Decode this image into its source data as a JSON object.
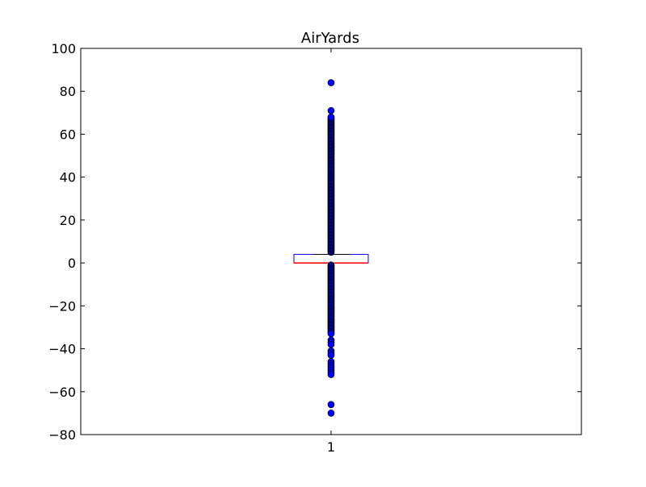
{
  "chart_data": {
    "type": "box",
    "title": "AirYards",
    "xlabel": "",
    "ylabel": "",
    "categories": [
      "1"
    ],
    "ylim": [
      -80,
      100
    ],
    "yticks": [
      -80,
      -60,
      -40,
      -20,
      0,
      20,
      40,
      60,
      80,
      100
    ],
    "ytick_labels": [
      "−80",
      "−60",
      "−40",
      "−20",
      "0",
      "20",
      "40",
      "60",
      "80",
      "100"
    ],
    "xtick_labels": [
      "1"
    ],
    "grid": false,
    "box": {
      "q1": 0,
      "median": 0,
      "q3": 4,
      "whisker_low": 0,
      "whisker_high": 4
    },
    "outliers": {
      "high_continuous_range": [
        5,
        68
      ],
      "high_isolated": [
        71,
        84
      ],
      "low_continuous_range": [
        -33,
        -1
      ],
      "low_isolated": [
        -36,
        -37,
        -38,
        -41,
        -42,
        -43,
        -46,
        -47,
        -48,
        -49,
        -50,
        -51,
        -52,
        -66,
        -70
      ]
    },
    "colors": {
      "box": "#0000ff",
      "median": "#ff0000",
      "whisker": "#000000",
      "outlier_fill": "#0000ff",
      "outlier_edge": "#000000"
    }
  }
}
